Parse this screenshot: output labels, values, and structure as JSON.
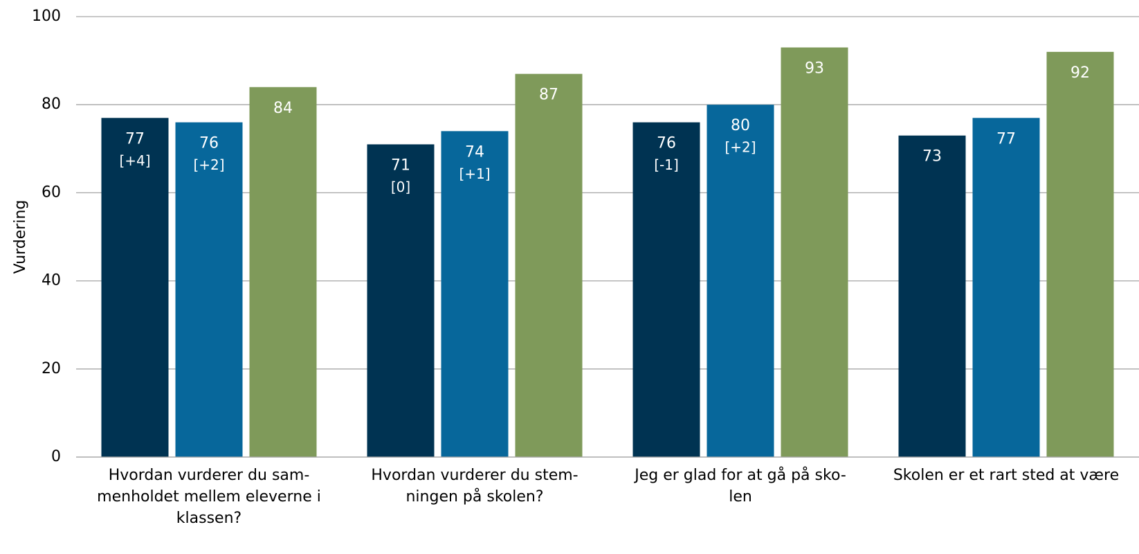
{
  "chart_data": {
    "type": "bar",
    "y_label": "Vurdering",
    "categories": [
      [
        "Hvordan vurderer du sam-",
        "menholdet mellem eleverne i",
        "klassen?"
      ],
      [
        "Hvordan vurderer du stem-",
        "ningen på skolen?"
      ],
      [
        "Jeg er glad for at gå på sko-",
        "len"
      ],
      [
        "Skolen er et rart sted at være"
      ]
    ],
    "series": [
      {
        "color": "#003352",
        "values": [
          77,
          71,
          76,
          73
        ],
        "change_labels": [
          "[+4]",
          "[0]",
          "[-1]",
          null
        ]
      },
      {
        "color": "#07679b",
        "values": [
          76,
          74,
          80,
          77
        ],
        "change_labels": [
          "[+2]",
          "[+1]",
          "[+2]",
          null
        ]
      },
      {
        "color": "#7f9a5a",
        "values": [
          84,
          87,
          93,
          92
        ],
        "change_labels": [
          null,
          null,
          null,
          null
        ]
      }
    ],
    "ylim": [
      0,
      100
    ],
    "yticks": [
      0,
      20,
      40,
      60,
      80,
      100
    ],
    "grid": true
  }
}
